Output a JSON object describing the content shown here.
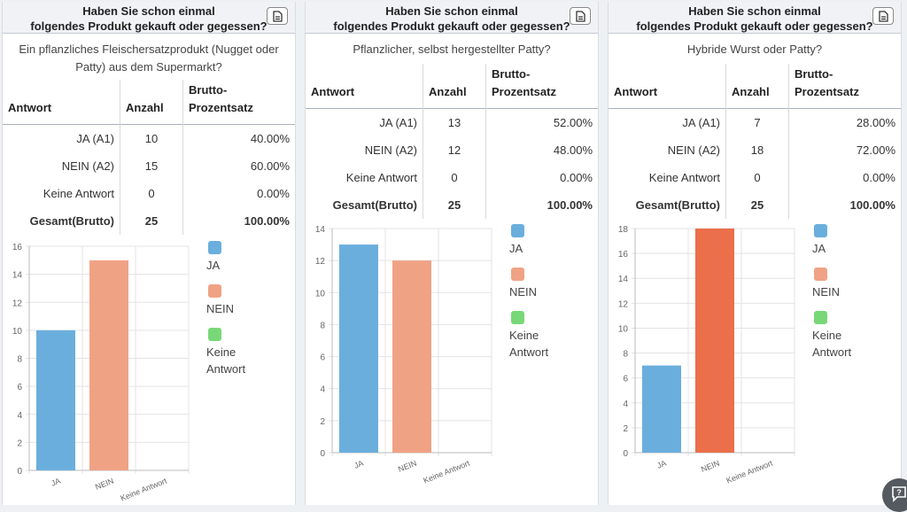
{
  "question": {
    "line1": "Haben Sie schon einmal",
    "line2": "folgendes Produkt gekauft oder gegessen?",
    "copy_icon": "clipboard-icon"
  },
  "table_headers": {
    "answer": "Antwort",
    "count": "Anzahl",
    "percent_line1": "Brutto-",
    "percent_line2": "Prozentsatz"
  },
  "colors": {
    "ja": "#6aaedd",
    "nein": "#f0a285",
    "nein_dark": "#ea6f4a",
    "keine": "#78d878"
  },
  "panels": [
    {
      "subquestion_lines": [
        "Ein pflanzliches Fleischersatzprodukt (Nugget oder",
        "Patty) aus dem Supermarkt?"
      ],
      "rows": [
        {
          "label": "JA (A1)",
          "count": "10",
          "percent": "40.00%"
        },
        {
          "label": "NEIN (A2)",
          "count": "15",
          "percent": "60.00%"
        },
        {
          "label": "Keine Antwort",
          "count": "0",
          "percent": "0.00%"
        }
      ],
      "total": {
        "label": "Gesamt(Brutto)",
        "count": "25",
        "percent": "100.00%"
      },
      "legend": [
        [
          "JA"
        ],
        [
          "NEIN"
        ],
        [
          "Keine",
          "Antwort"
        ]
      ]
    },
    {
      "subquestion_lines": [
        "Pflanzlicher, selbst hergestellter Patty?"
      ],
      "rows": [
        {
          "label": "JA (A1)",
          "count": "13",
          "percent": "52.00%"
        },
        {
          "label": "NEIN (A2)",
          "count": "12",
          "percent": "48.00%"
        },
        {
          "label": "Keine Antwort",
          "count": "0",
          "percent": "0.00%"
        }
      ],
      "total": {
        "label": "Gesamt(Brutto)",
        "count": "25",
        "percent": "100.00%"
      },
      "legend": [
        [
          "JA"
        ],
        [
          "NEIN"
        ],
        [
          "Keine",
          "Antwort"
        ]
      ]
    },
    {
      "subquestion_lines": [
        "Hybride Wurst oder Patty?"
      ],
      "rows": [
        {
          "label": "JA (A1)",
          "count": "7",
          "percent": "28.00%"
        },
        {
          "label": "NEIN (A2)",
          "count": "18",
          "percent": "72.00%"
        },
        {
          "label": "Keine Antwort",
          "count": "0",
          "percent": "0.00%"
        }
      ],
      "total": {
        "label": "Gesamt(Brutto)",
        "count": "25",
        "percent": "100.00%"
      },
      "legend": [
        [
          "JA"
        ],
        [
          "NEIN"
        ],
        [
          "Keine",
          "Antwort"
        ]
      ]
    }
  ],
  "chart_data": [
    {
      "type": "bar",
      "categories": [
        "JA",
        "NEIN",
        "Keine Antwort"
      ],
      "values": [
        10,
        15,
        0
      ],
      "ylim": [
        0,
        16
      ],
      "yticks": [
        "0",
        "2",
        "4",
        "6",
        "8",
        "10",
        "12",
        "14",
        "16"
      ],
      "grid": true
    },
    {
      "type": "bar",
      "categories": [
        "JA",
        "NEIN",
        "Keine Antwort"
      ],
      "values": [
        13,
        12,
        0
      ],
      "ylim": [
        0,
        14
      ],
      "yticks": [
        "0",
        "2",
        "4",
        "6",
        "8",
        "10",
        "12",
        "14"
      ],
      "grid": true
    },
    {
      "type": "bar",
      "categories": [
        "JA",
        "NEIN",
        "Keine Antwort"
      ],
      "values": [
        7,
        18,
        0
      ],
      "ylim": [
        0,
        18
      ],
      "yticks": [
        "0",
        "2",
        "4",
        "6",
        "8",
        "10",
        "12",
        "14",
        "16",
        "18"
      ],
      "grid": true
    }
  ],
  "help_icon": "help-chat-icon"
}
